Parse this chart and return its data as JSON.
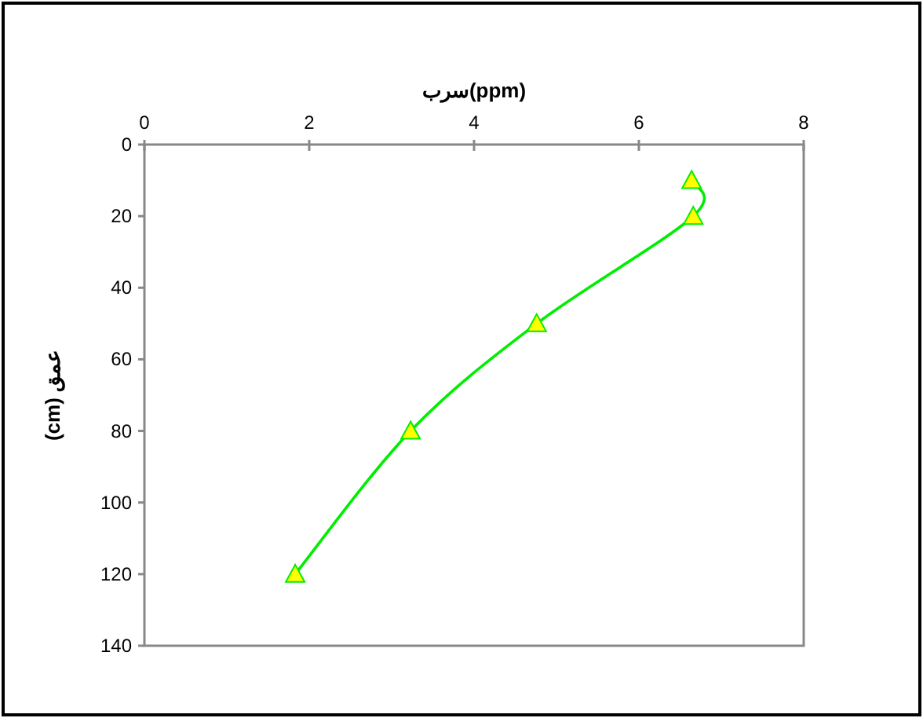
{
  "chart_data": {
    "type": "line",
    "xlabel": "سرب(ppm)",
    "ylabel": "(cm) عمق",
    "series": [
      {
        "color": "#00ee00",
        "x": [
          6.64,
          6.66,
          4.76,
          3.23,
          1.83
        ],
        "values": [
          10,
          20,
          50,
          80,
          120
        ]
      }
    ],
    "marker": "triangle",
    "line_style": "solid",
    "xlim": [
      0,
      8
    ],
    "xticks": [
      0,
      2,
      4,
      6,
      8
    ],
    "ylim": [
      140,
      0
    ],
    "yticks": [
      0,
      20,
      40,
      60,
      80,
      100,
      120,
      140
    ],
    "grid": false
  }
}
